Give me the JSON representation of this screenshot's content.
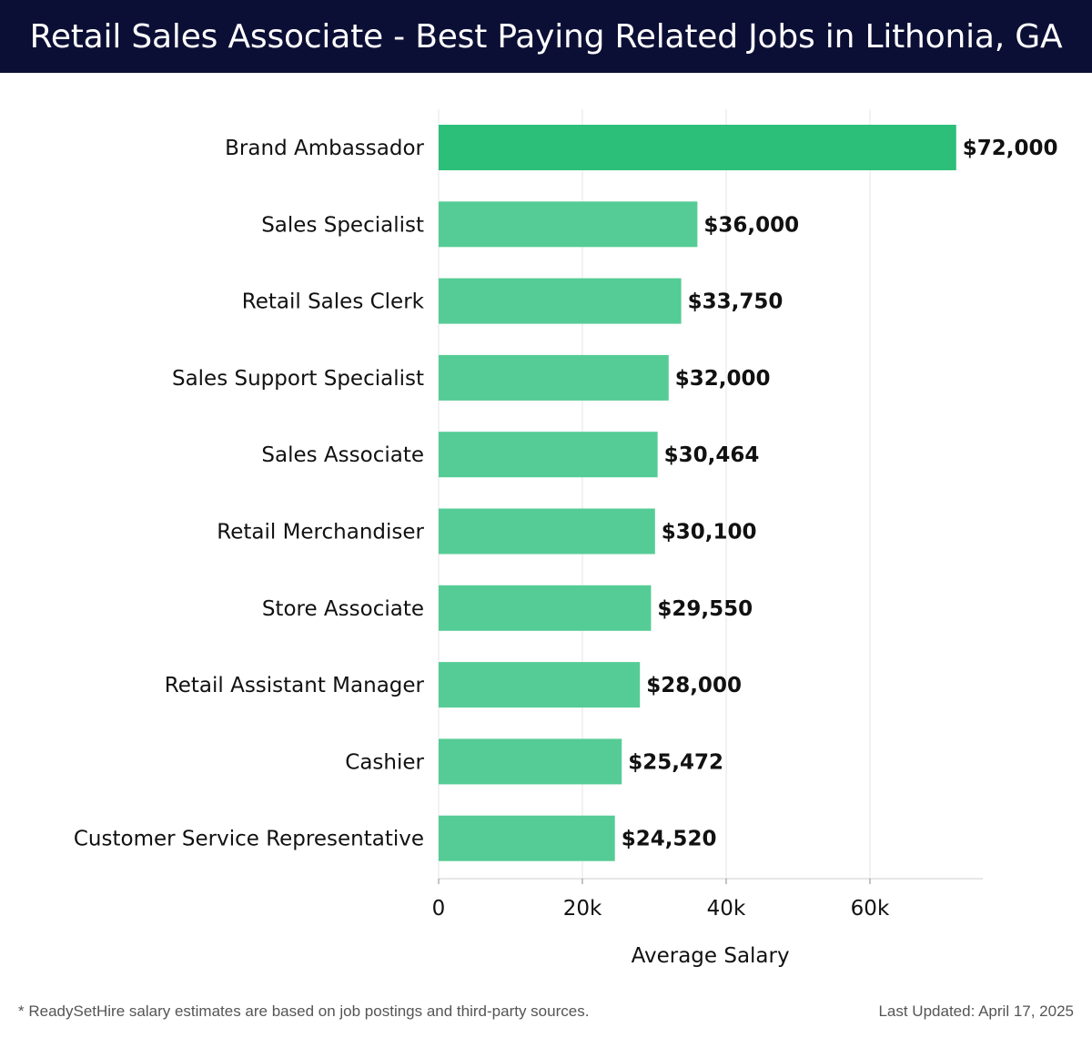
{
  "header": {
    "title": "Retail Sales Associate - Best Paying Related Jobs in Lithonia, GA"
  },
  "chart_data": {
    "type": "bar",
    "orientation": "horizontal",
    "categories": [
      "Brand Ambassador",
      "Sales Specialist",
      "Retail Sales Clerk",
      "Sales Support Specialist",
      "Sales Associate",
      "Retail Merchandiser",
      "Store Associate",
      "Retail Assistant Manager",
      "Cashier",
      "Customer Service Representative"
    ],
    "values": [
      72000,
      36000,
      33750,
      32000,
      30464,
      30100,
      29550,
      28000,
      25472,
      24520
    ],
    "value_labels": [
      "$72,000",
      "$36,000",
      "$33,750",
      "$32,000",
      "$30,464",
      "$30,100",
      "$29,550",
      "$28,000",
      "$25,472",
      "$24,520"
    ],
    "xlabel": "Average Salary",
    "ylabel": "",
    "xlim": [
      0,
      75700
    ],
    "xticks": [
      0,
      20000,
      40000,
      60000
    ],
    "xtick_labels": [
      "0",
      "20k",
      "40k",
      "60k"
    ],
    "grid": "vertical",
    "colors": {
      "top_bar": "#2bbf79",
      "bar": "#55cc95",
      "grid": "#e6e6e6",
      "axis": "#cccccc"
    }
  },
  "footer": {
    "note": "* ReadySetHire salary estimates are based on job postings and third-party sources.",
    "updated": "Last Updated: April 17, 2025"
  }
}
